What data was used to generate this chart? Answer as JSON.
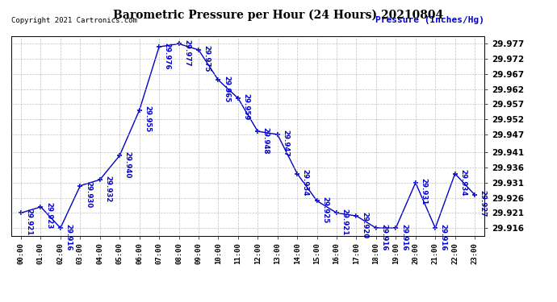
{
  "title": "Barometric Pressure per Hour (24 Hours) 20210804",
  "ylabel": "Pressure (Inches/Hg)",
  "copyright": "Copyright 2021 Cartronics.com",
  "line_color": "#0000CC",
  "background_color": "#ffffff",
  "grid_color": "#b0b0b0",
  "hours": [
    0,
    1,
    2,
    3,
    4,
    5,
    6,
    7,
    8,
    9,
    10,
    11,
    12,
    13,
    14,
    15,
    16,
    17,
    18,
    19,
    20,
    21,
    22,
    23
  ],
  "values": [
    29.921,
    29.923,
    29.916,
    29.93,
    29.932,
    29.94,
    29.955,
    29.976,
    29.977,
    29.975,
    29.965,
    29.959,
    29.948,
    29.947,
    29.934,
    29.925,
    29.921,
    29.92,
    29.916,
    29.916,
    29.931,
    29.916,
    29.934,
    29.927
  ],
  "ylim_min": 29.9135,
  "ylim_max": 29.9795,
  "ytick_values": [
    29.916,
    29.921,
    29.926,
    29.931,
    29.936,
    29.941,
    29.947,
    29.952,
    29.957,
    29.962,
    29.967,
    29.972,
    29.977
  ],
  "fig_width": 6.9,
  "fig_height": 3.75,
  "dpi": 100
}
